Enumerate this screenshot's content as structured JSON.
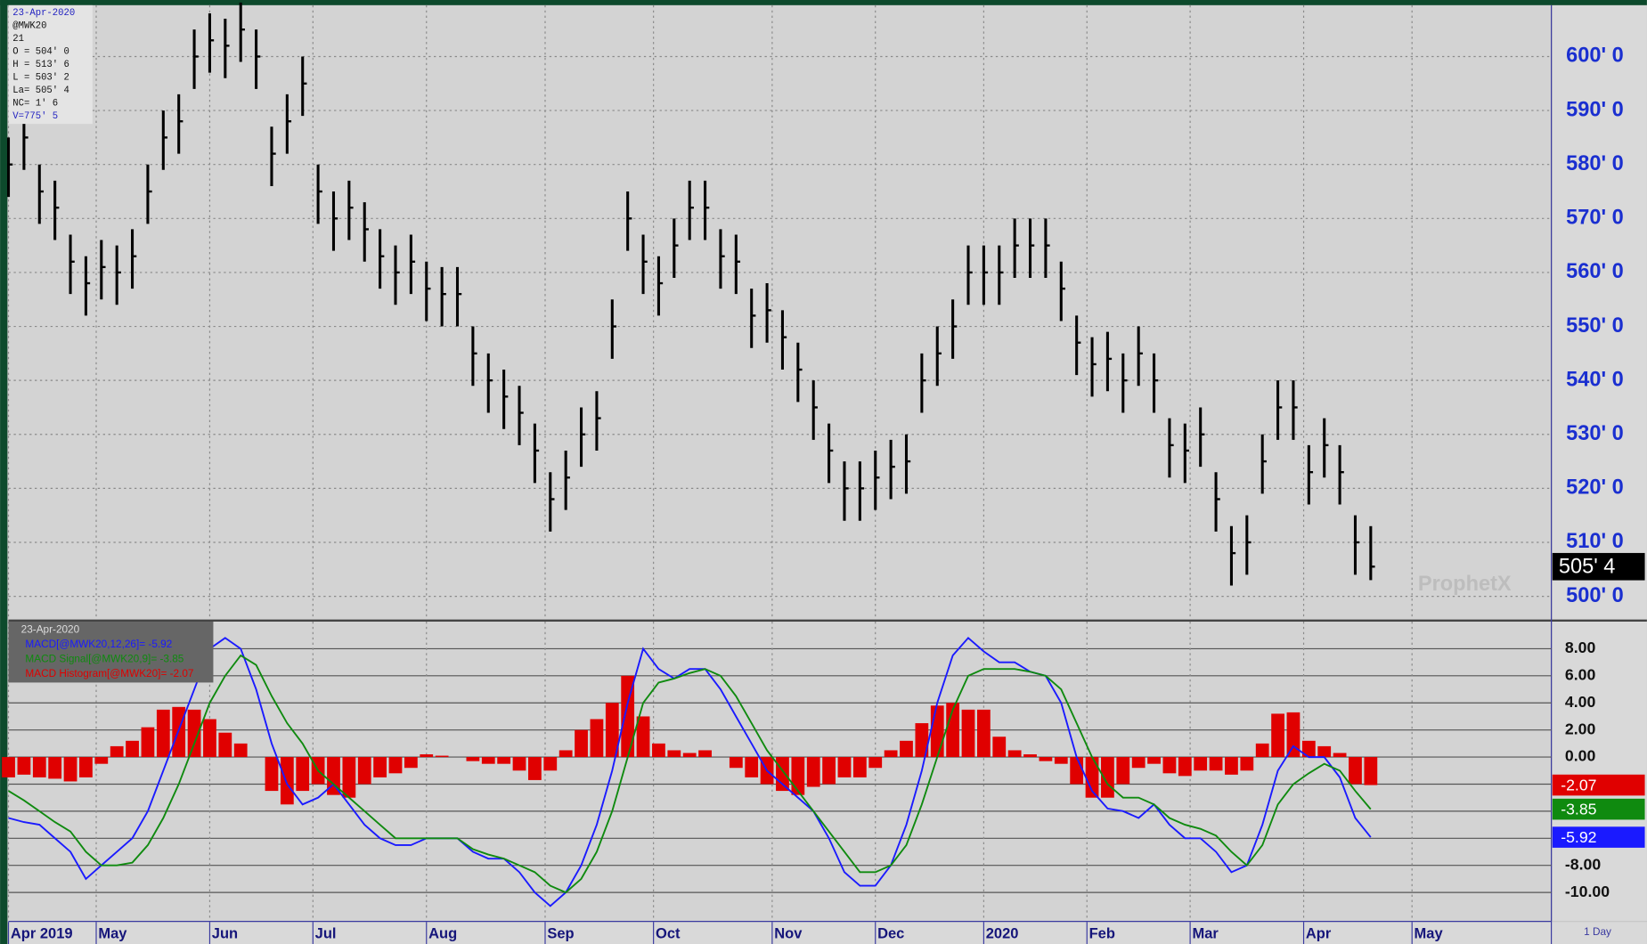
{
  "chart_data": [
    {
      "type": "ohlc",
      "info": [
        "23-Apr-2020",
        "@MWK20",
        "21",
        "O = 504' 0",
        "H = 513' 6",
        "L = 503' 2",
        "La= 505' 4",
        "NC= 1' 6",
        "V=775' 5"
      ],
      "watermark": "ProphetX",
      "color": "#000000",
      "last_label": "505' 4",
      "x": [
        0,
        3,
        6,
        9,
        12,
        15,
        18,
        21,
        24,
        27,
        30,
        33,
        36,
        39,
        42,
        45,
        48,
        51,
        54,
        57,
        60,
        63,
        66,
        69,
        72,
        75,
        78,
        81,
        84,
        87,
        90,
        93,
        96,
        99,
        102,
        105,
        108,
        111,
        114,
        117,
        120,
        123,
        126,
        129,
        132,
        135,
        138,
        141,
        144,
        147,
        150,
        153,
        156,
        159,
        162,
        165,
        168,
        171,
        174,
        177,
        180,
        183,
        186,
        189,
        192,
        195,
        198,
        201,
        204,
        207,
        210,
        213,
        216,
        219,
        222,
        225,
        228,
        231,
        234,
        237,
        240,
        243,
        246,
        249,
        252,
        255,
        258,
        261,
        264
      ],
      "high": [
        585,
        590,
        580,
        577,
        567,
        563,
        566,
        565,
        568,
        580,
        590,
        593,
        605,
        608,
        607,
        610,
        605,
        587,
        593,
        600,
        580,
        575,
        577,
        573,
        568,
        565,
        567,
        562,
        561,
        561,
        550,
        545,
        542,
        539,
        532,
        523,
        527,
        535,
        538,
        555,
        575,
        567,
        563,
        570,
        577,
        577,
        568,
        567,
        557,
        558,
        553,
        547,
        540,
        532,
        525,
        525,
        527,
        529,
        530,
        545,
        550,
        555,
        565,
        565,
        565,
        570,
        570,
        570,
        562,
        552,
        548,
        549,
        545,
        550,
        545,
        533,
        532,
        535,
        523,
        513,
        515,
        530,
        540,
        540,
        528,
        533,
        528,
        515,
        513
      ],
      "low": [
        574,
        579,
        569,
        566,
        556,
        552,
        555,
        554,
        557,
        569,
        579,
        582,
        594,
        597,
        596,
        599,
        594,
        576,
        582,
        589,
        569,
        564,
        566,
        562,
        557,
        554,
        556,
        551,
        550,
        550,
        539,
        534,
        531,
        528,
        521,
        512,
        516,
        524,
        527,
        544,
        564,
        556,
        552,
        559,
        566,
        566,
        557,
        556,
        546,
        547,
        542,
        536,
        529,
        521,
        514,
        514,
        516,
        518,
        519,
        534,
        539,
        544,
        554,
        554,
        554,
        559,
        559,
        559,
        551,
        541,
        537,
        538,
        534,
        539,
        534,
        522,
        521,
        524,
        512,
        502,
        504,
        519,
        529,
        529,
        517,
        522,
        517,
        504,
        503
      ],
      "close": [
        580,
        585,
        575,
        572,
        562,
        558,
        561,
        560,
        563,
        575,
        585,
        588,
        600,
        603,
        602,
        605,
        600,
        582,
        588,
        595,
        575,
        570,
        572,
        568,
        563,
        560,
        562,
        557,
        556,
        556,
        545,
        540,
        537,
        534,
        527,
        518,
        522,
        530,
        533,
        550,
        570,
        562,
        558,
        565,
        572,
        572,
        563,
        562,
        552,
        553,
        548,
        542,
        535,
        527,
        520,
        520,
        522,
        524,
        525,
        540,
        545,
        550,
        560,
        560,
        560,
        565,
        565,
        565,
        557,
        547,
        543,
        544,
        540,
        545,
        540,
        528,
        527,
        530,
        518,
        508,
        510,
        525,
        535,
        535,
        523,
        528,
        523,
        510,
        505.5
      ],
      "xlim": [
        0,
        299
      ],
      "ylim": [
        495.7,
        609.5
      ],
      "yticks": [
        {
          "value": 500,
          "label": "500' 0"
        },
        {
          "value": 510,
          "label": "510' 0"
        },
        {
          "value": 520,
          "label": "520' 0"
        },
        {
          "value": 530,
          "label": "530' 0"
        },
        {
          "value": 540,
          "label": "540' 0"
        },
        {
          "value": 550,
          "label": "550' 0"
        },
        {
          "value": 560,
          "label": "560' 0"
        },
        {
          "value": 570,
          "label": "570' 0"
        },
        {
          "value": 580,
          "label": "580' 0"
        },
        {
          "value": 590,
          "label": "590' 0"
        },
        {
          "value": 600,
          "label": "600' 0"
        }
      ],
      "grid": true
    },
    {
      "type": "macd",
      "date": "23-Apr-2020",
      "interval": "1 Day",
      "x": [
        0,
        3,
        6,
        9,
        12,
        15,
        18,
        21,
        24,
        27,
        30,
        33,
        36,
        39,
        42,
        45,
        48,
        51,
        54,
        57,
        60,
        63,
        66,
        69,
        72,
        75,
        78,
        81,
        84,
        87,
        90,
        93,
        96,
        99,
        102,
        105,
        108,
        111,
        114,
        117,
        120,
        123,
        126,
        129,
        132,
        135,
        138,
        141,
        144,
        147,
        150,
        153,
        156,
        159,
        162,
        165,
        168,
        171,
        174,
        177,
        180,
        183,
        186,
        189,
        192,
        195,
        198,
        201,
        204,
        207,
        210,
        213,
        216,
        219,
        222,
        225,
        228,
        231,
        234,
        237,
        240,
        243,
        246,
        249,
        252,
        255,
        258,
        261,
        264
      ],
      "series": [
        {
          "name": "MACD[@MWK20,12,26]= -5.92",
          "color": "#1a1aff",
          "style": "line",
          "last_label": "-5.92",
          "values": [
            -4.5,
            -4.8,
            -5,
            -6,
            -7,
            -9,
            -8,
            -7,
            -6,
            -4,
            -1,
            2,
            5,
            8,
            8.8,
            8,
            5,
            1,
            -2,
            -3.5,
            -3,
            -2,
            -3.5,
            -5,
            -6,
            -6.5,
            -6.5,
            -6,
            -6,
            -6,
            -7,
            -7.5,
            -7.5,
            -8.5,
            -10,
            -11,
            -10,
            -8,
            -5,
            -1,
            4,
            8,
            6.5,
            5.8,
            6.5,
            6.5,
            5,
            3,
            1,
            -1,
            -2,
            -3,
            -4,
            -6,
            -8.5,
            -9.5,
            -9.5,
            -8,
            -5,
            -1,
            4,
            7.5,
            8.8,
            7.8,
            7,
            7,
            6.3,
            6,
            4,
            0,
            -2.5,
            -3.8,
            -4,
            -4.5,
            -3.5,
            -5,
            -6,
            -6,
            -7,
            -8.5,
            -8,
            -5,
            -1,
            0.8,
            0,
            0,
            -1.5,
            -4.5,
            -5.92
          ]
        },
        {
          "name": "MACD Signal[@MWK20,9]= -3.85",
          "color": "#0f8a0f",
          "style": "line",
          "last_label": "-3.85",
          "values": [
            -2.5,
            -3.2,
            -4,
            -4.8,
            -5.5,
            -7,
            -8,
            -8,
            -7.8,
            -6.5,
            -4.5,
            -2,
            1,
            4,
            6,
            7.5,
            6.8,
            4.5,
            2.5,
            1,
            -1,
            -2,
            -3,
            -4,
            -5,
            -6,
            -6,
            -6,
            -6,
            -6,
            -6.8,
            -7.2,
            -7.5,
            -8,
            -8.5,
            -9.5,
            -10,
            -9,
            -7,
            -4,
            0,
            4,
            5.5,
            5.8,
            6.2,
            6.5,
            6,
            4.5,
            2.5,
            0.5,
            -1,
            -2.5,
            -4,
            -5.5,
            -7,
            -8.5,
            -8.5,
            -8,
            -6.5,
            -3.5,
            0,
            3.5,
            6,
            6.5,
            6.5,
            6.5,
            6.3,
            6,
            5,
            2.5,
            0,
            -2,
            -3,
            -3,
            -3.5,
            -4.5,
            -5,
            -5.3,
            -5.8,
            -7,
            -8,
            -6.5,
            -3.5,
            -2,
            -1.2,
            -0.5,
            -1,
            -2.5,
            -3.85
          ]
        },
        {
          "name": "MACD Histogram[@MWK20]= -2.07",
          "color": "#e00000",
          "style": "bar",
          "last_label": "-2.07",
          "values": [
            -1.5,
            -1.3,
            -1.5,
            -1.6,
            -1.8,
            -1.5,
            -0.5,
            0.8,
            1.2,
            2.2,
            3.5,
            3.7,
            3.5,
            2.8,
            1.8,
            1,
            0,
            -2.5,
            -3.5,
            -2.5,
            -2,
            -2.8,
            -3,
            -2,
            -1.5,
            -1.2,
            -0.8,
            0.2,
            0.1,
            0,
            -0.3,
            -0.5,
            -0.5,
            -1,
            -1.7,
            -1,
            0.5,
            2,
            2.8,
            4,
            6,
            3,
            1,
            0.5,
            0.3,
            0.5,
            0,
            -0.8,
            -1.5,
            -2,
            -2.5,
            -2.8,
            -2.2,
            -2,
            -1.5,
            -1.5,
            -0.8,
            0.5,
            1.2,
            2.5,
            3.8,
            4,
            3.5,
            3.5,
            1.5,
            0.5,
            0.2,
            -0.3,
            -0.5,
            -2,
            -3,
            -3,
            -2,
            -0.8,
            -0.5,
            -1.2,
            -1.4,
            -1,
            -1,
            -1.3,
            -1,
            1,
            3.2,
            3.3,
            1.2,
            0.8,
            0.3,
            -2,
            -2.07
          ]
        }
      ],
      "xlim": [
        0,
        299
      ],
      "xticks": [
        {
          "value": 0,
          "label": "Apr 2019"
        },
        {
          "value": 17,
          "label": "May"
        },
        {
          "value": 39,
          "label": "Jun"
        },
        {
          "value": 59,
          "label": "Jul"
        },
        {
          "value": 81,
          "label": "Aug"
        },
        {
          "value": 104,
          "label": "Sep"
        },
        {
          "value": 125,
          "label": "Oct"
        },
        {
          "value": 148,
          "label": "Nov"
        },
        {
          "value": 168,
          "label": "Dec"
        },
        {
          "value": 189,
          "label": "2020"
        },
        {
          "value": 209,
          "label": "Feb"
        },
        {
          "value": 229,
          "label": "Mar"
        },
        {
          "value": 251,
          "label": "Apr"
        },
        {
          "value": 272,
          "label": "May"
        }
      ],
      "ylim": [
        -12.1,
        10
      ],
      "yticks": [
        {
          "value": 8,
          "label": "8.00"
        },
        {
          "value": 6,
          "label": "6.00"
        },
        {
          "value": 4,
          "label": "4.00"
        },
        {
          "value": 2,
          "label": "2.00"
        },
        {
          "value": 0,
          "label": "0.00"
        },
        {
          "value": -2,
          "label": "-2.00"
        },
        {
          "value": -4,
          "label": "-4.00"
        },
        {
          "value": -6,
          "label": "-6.00"
        },
        {
          "value": -8,
          "label": "-8.00"
        },
        {
          "value": -10,
          "label": "-10.00"
        }
      ],
      "grid": true
    }
  ]
}
